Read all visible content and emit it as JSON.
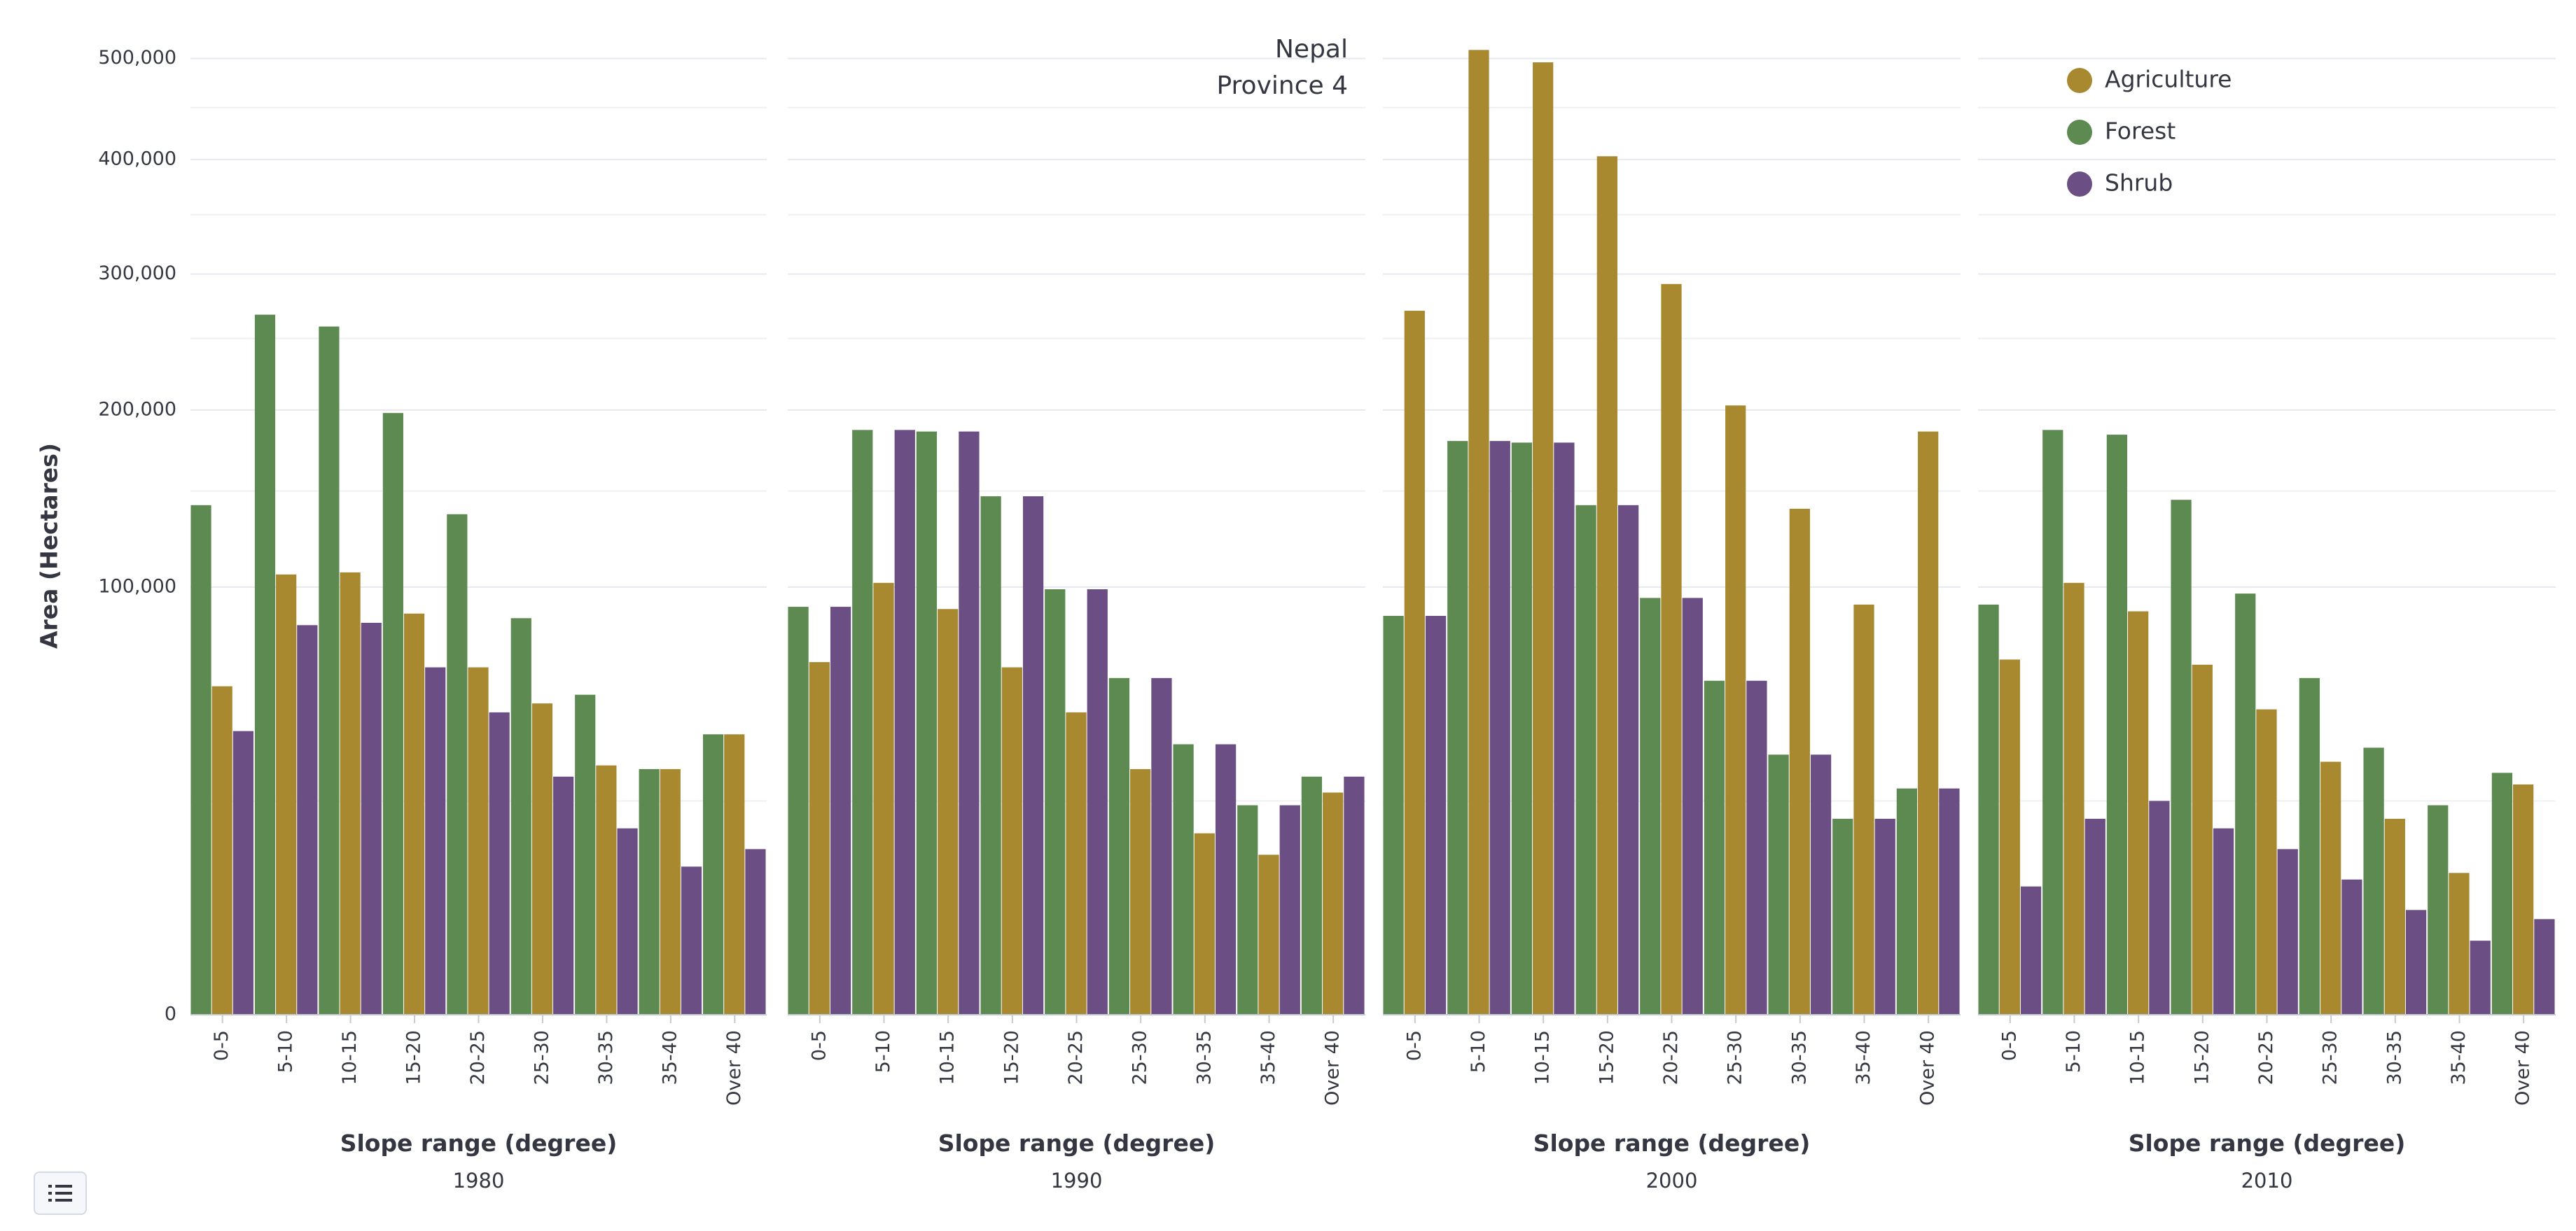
{
  "chart_data": {
    "type": "bar",
    "title": [
      "Nepal",
      "Province 4"
    ],
    "ylabel": "Area (Hectares)",
    "xlabel": "Slope range (degree)",
    "yscale": "sqrt",
    "ylim": [
      0,
      540000
    ],
    "yticks": [
      0,
      100000,
      200000,
      300000,
      400000,
      500000
    ],
    "ytick_labels": [
      "0",
      "100,000",
      "200,000",
      "300,000",
      "400,000",
      "500,000"
    ],
    "categories": [
      "0-5",
      "5-10",
      "10-15",
      "15-20",
      "20-25",
      "25-30",
      "30-35",
      "35-40",
      "Over 40"
    ],
    "legend": [
      {
        "name": "Agriculture",
        "color": "#a8892f"
      },
      {
        "name": "Forest",
        "color": "#5d8a51"
      },
      {
        "name": "Shrub",
        "color": "#6b4e83"
      }
    ],
    "legend_position": "top-right",
    "panels": [
      {
        "label": "1980",
        "series": [
          {
            "name": "Forest",
            "values": [
              142000,
              268000,
              259000,
              198000,
              137000,
              86000,
              56000,
              33000,
              43000
            ]
          },
          {
            "name": "Agriculture",
            "values": [
              59000,
              106000,
              107000,
              88000,
              66000,
              53000,
              34000,
              33000,
              43000
            ]
          },
          {
            "name": "Shrub",
            "values": [
              44000,
              83000,
              84000,
              66000,
              50000,
              31000,
              19000,
              12000,
              15000
            ]
          }
        ]
      },
      {
        "label": "1990",
        "series": [
          {
            "name": "Forest",
            "values": [
              91000,
              187000,
              186000,
              147000,
              99000,
              62000,
              40000,
              24000,
              31000
            ]
          },
          {
            "name": "Agriculture",
            "values": [
              68000,
              102000,
              90000,
              66000,
              50000,
              33000,
              18000,
              14000,
              27000
            ]
          },
          {
            "name": "Shrub",
            "values": [
              91000,
              187000,
              186000,
              147000,
              99000,
              62000,
              40000,
              24000,
              31000
            ]
          }
        ]
      },
      {
        "label": "2000",
        "series": [
          {
            "name": "Forest",
            "values": [
              87000,
              180000,
              179000,
              142000,
              95000,
              61000,
              37000,
              21000,
              28000
            ]
          },
          {
            "name": "Agriculture",
            "values": [
              271000,
              509000,
              496000,
              403000,
              292000,
              203000,
              140000,
              92000,
              186000
            ]
          },
          {
            "name": "Shrub",
            "values": [
              87000,
              180000,
              179000,
              142000,
              95000,
              61000,
              37000,
              21000,
              28000
            ]
          }
        ]
      },
      {
        "label": "2010",
        "series": [
          {
            "name": "Forest",
            "values": [
              92000,
              187000,
              184000,
              145000,
              97000,
              62000,
              39000,
              24000,
              32000
            ]
          },
          {
            "name": "Agriculture",
            "values": [
              69000,
              102000,
              89000,
              67000,
              51000,
              35000,
              21000,
              11000,
              29000
            ]
          },
          {
            "name": "Shrub",
            "values": [
              9000,
              21000,
              25000,
              19000,
              15000,
              10000,
              6000,
              3000,
              5000
            ]
          }
        ]
      }
    ]
  },
  "ui": {
    "legend_toggle_icon": "list-icon"
  }
}
